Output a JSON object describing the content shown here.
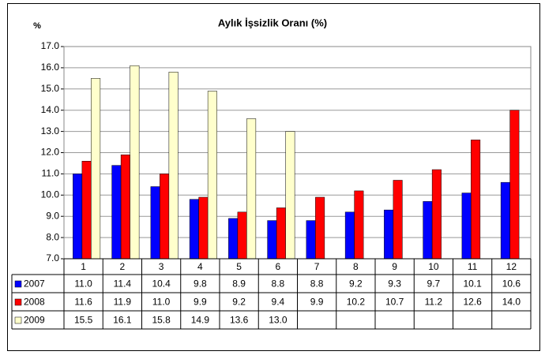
{
  "chart_data": {
    "type": "bar",
    "title": "Aylık İşsizlik Oranı (%)",
    "y_label": "%",
    "categories": [
      "1",
      "2",
      "3",
      "4",
      "5",
      "6",
      "7",
      "8",
      "9",
      "10",
      "11",
      "12"
    ],
    "series": [
      {
        "name": "2007",
        "color": "#0000ff",
        "values": [
          11.0,
          11.4,
          10.4,
          9.8,
          8.9,
          8.8,
          8.8,
          9.2,
          9.3,
          9.7,
          10.1,
          10.6
        ],
        "value_labels": [
          "11.0",
          "11.4",
          "10.4",
          "9.8",
          "8.9",
          "8.8",
          "8.8",
          "9.2",
          "9.3",
          "9.7",
          "10.1",
          "10.6"
        ]
      },
      {
        "name": "2008",
        "color": "#ff0000",
        "values": [
          11.6,
          11.9,
          11.0,
          9.9,
          9.2,
          9.4,
          9.9,
          10.2,
          10.7,
          11.2,
          12.6,
          14.0
        ],
        "value_labels": [
          "11.6",
          "11.9",
          "11.0",
          "9.9",
          "9.2",
          "9.4",
          "9.9",
          "10.2",
          "10.7",
          "11.2",
          "12.6",
          "14.0"
        ]
      },
      {
        "name": "2009",
        "color": "#ffffcc",
        "values": [
          15.5,
          16.1,
          15.8,
          14.9,
          13.6,
          13.0,
          null,
          null,
          null,
          null,
          null,
          null
        ],
        "value_labels": [
          "15.5",
          "16.1",
          "15.8",
          "14.9",
          "13.6",
          "13.0",
          null,
          null,
          null,
          null,
          null,
          null
        ]
      }
    ],
    "ylim": [
      7,
      17
    ],
    "yticks": [
      {
        "value": 7,
        "label": "7.0"
      },
      {
        "value": 8,
        "label": "8.0"
      },
      {
        "value": 9,
        "label": "9.0"
      },
      {
        "value": 10,
        "label": "10.0"
      },
      {
        "value": 11,
        "label": "11.0"
      },
      {
        "value": 12,
        "label": "12.0"
      },
      {
        "value": 13,
        "label": "13.0"
      },
      {
        "value": 14,
        "label": "14.0"
      },
      {
        "value": 15,
        "label": "15.0"
      },
      {
        "value": 16,
        "label": "16.0"
      },
      {
        "value": 17,
        "label": "17.0"
      }
    ],
    "grid": true
  }
}
